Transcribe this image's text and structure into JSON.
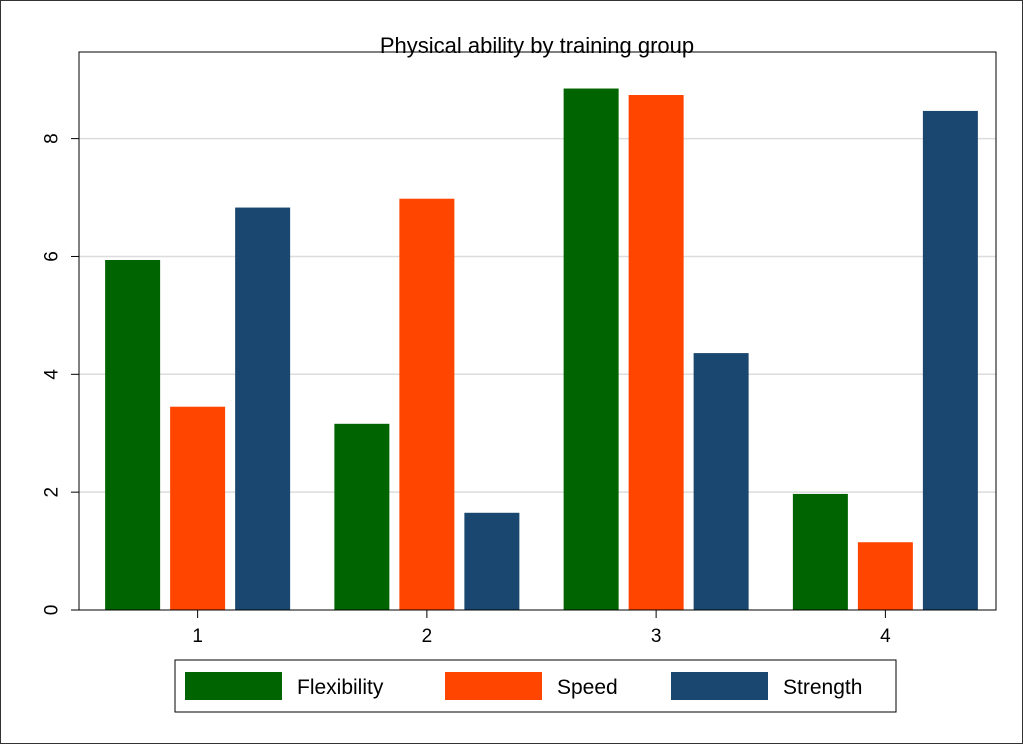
{
  "chart_data": {
    "type": "bar",
    "title": "Physical ability by training group",
    "xlabel": "",
    "ylabel": "",
    "categories": [
      "1",
      "2",
      "3",
      "4"
    ],
    "series": [
      {
        "name": "Flexibility",
        "color": "#006400",
        "values": [
          5.94,
          3.16,
          8.85,
          1.97
        ]
      },
      {
        "name": "Speed",
        "color": "#ff4500",
        "values": [
          3.45,
          6.98,
          8.74,
          1.15
        ]
      },
      {
        "name": "Strength",
        "color": "#1a476f",
        "values": [
          6.83,
          1.65,
          4.36,
          8.47
        ]
      }
    ],
    "ylim": [
      0,
      9.47
    ],
    "yticks": [
      "0",
      "2",
      "4",
      "6",
      "8"
    ],
    "grid": true,
    "legend_position": "bottom"
  }
}
